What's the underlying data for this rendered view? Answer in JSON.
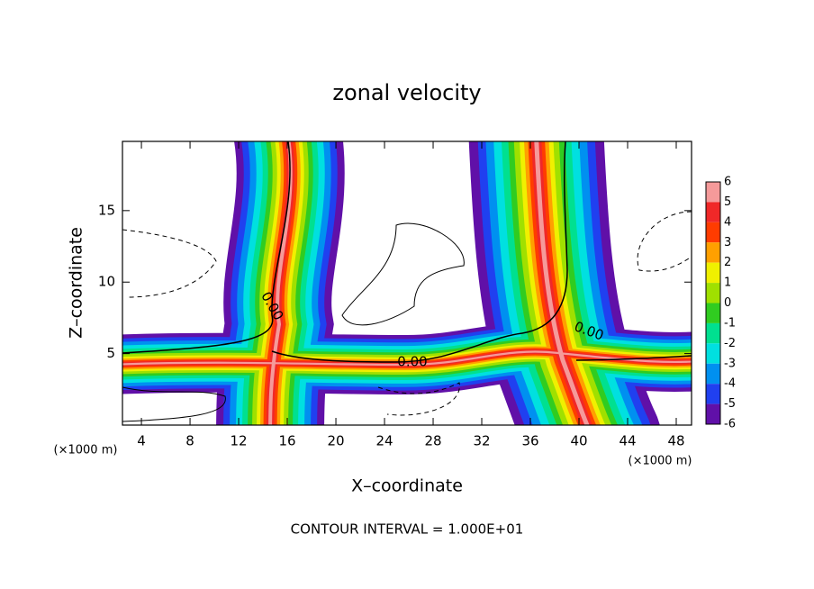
{
  "chart_data": {
    "type": "contour",
    "title": "zonal velocity",
    "x_label": "X–coordinate",
    "y_label": "Z–coordinate",
    "x_unit_left": "(×1000 m)",
    "x_unit_right": "(×1000 m)",
    "footer": "CONTOUR INTERVAL = 1.000E+01",
    "xlim": [
      2.44,
      49.26
    ],
    "ylim": [
      0,
      19.84
    ],
    "xticks": [
      4,
      8,
      12,
      16,
      20,
      24,
      28,
      32,
      36,
      40,
      44,
      48
    ],
    "yticks": [
      5,
      10,
      15
    ],
    "contour_labels": [
      "0.00",
      "0.00",
      "0.00"
    ],
    "colorbar": {
      "levels": [
        6,
        5,
        4,
        3,
        2,
        1,
        0,
        -1,
        -2,
        -3,
        -4,
        -5,
        -6
      ],
      "colors": [
        "#f59a9a",
        "#f02828",
        "#ff3c00",
        "#ffa000",
        "#f0f000",
        "#a0e000",
        "#30cc20",
        "#00e090",
        "#00e0e0",
        "#0090f0",
        "#2040f0",
        "#6010a8"
      ]
    }
  }
}
